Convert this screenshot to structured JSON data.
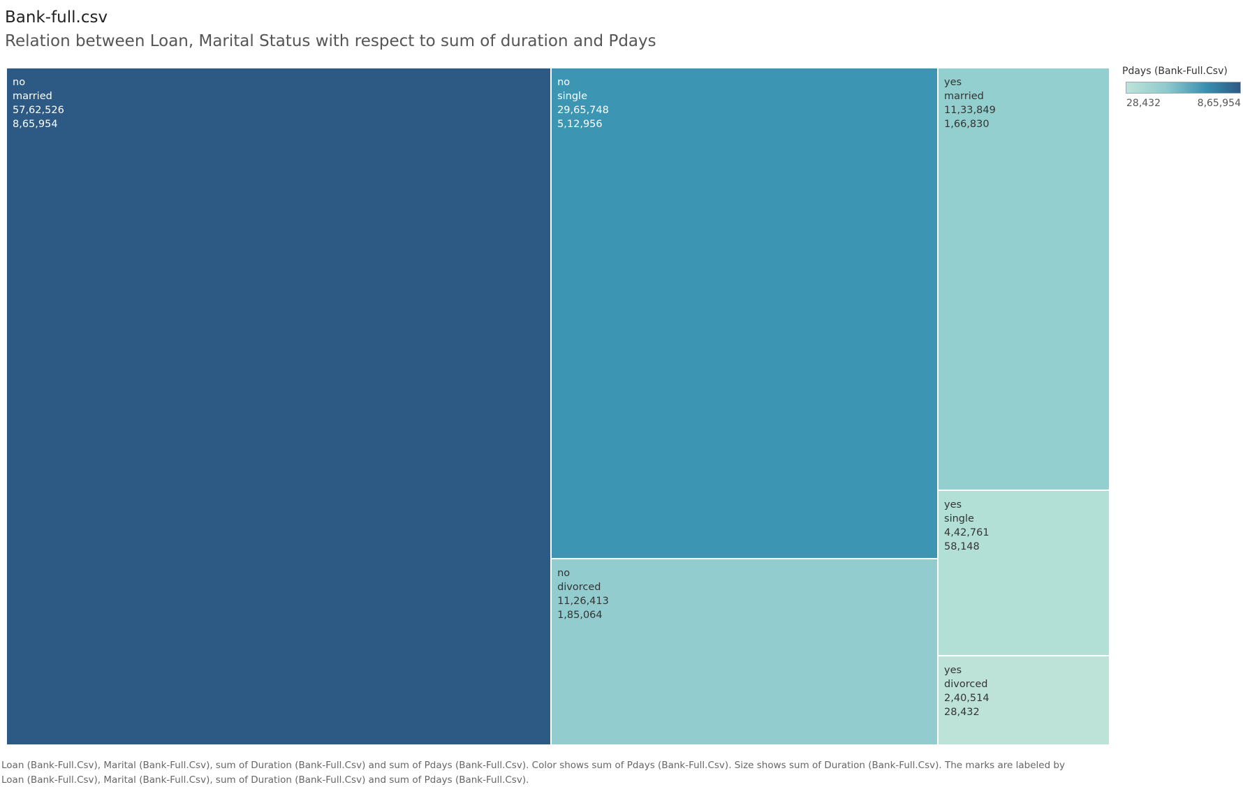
{
  "title": "Bank-full.csv",
  "subtitle": "Relation between Loan, Marital Status with respect to sum of duration and Pdays",
  "legend": {
    "title": "Pdays (Bank-Full.Csv)",
    "min_label": "28,432",
    "max_label": "8,65,954",
    "color_low": "#bde3d8",
    "color_high": "#2c5985"
  },
  "caption_line1": "Loan (Bank-Full.Csv), Marital (Bank-Full.Csv), sum of Duration (Bank-Full.Csv) and sum of Pdays (Bank-Full.Csv).  Color shows sum of Pdays (Bank-Full.Csv).  Size shows sum of Duration (Bank-Full.Csv).  The marks are labeled by",
  "caption_line2": "Loan (Bank-Full.Csv), Marital (Bank-Full.Csv), sum of Duration (Bank-Full.Csv) and sum of Pdays (Bank-Full.Csv).",
  "chart_data": {
    "type": "treemap",
    "size_measure": "sum of Duration",
    "color_measure": "sum of Pdays",
    "cells": [
      {
        "loan": "no",
        "marital": "married",
        "duration": 5762526,
        "duration_label": "57,62,526",
        "pdays": 865954,
        "pdays_label": "8,65,954",
        "color": "#2d5a85",
        "text_color": "#ffffff"
      },
      {
        "loan": "no",
        "marital": "single",
        "duration": 2965748,
        "duration_label": "29,65,748",
        "pdays": 512956,
        "pdays_label": "5,12,956",
        "color": "#3c96b3",
        "text_color": "#ffffff"
      },
      {
        "loan": "no",
        "marital": "divorced",
        "duration": 1126413,
        "duration_label": "11,26,413",
        "pdays": 185064,
        "pdays_label": "1,85,064",
        "color": "#92cccf",
        "text_color": "#333333"
      },
      {
        "loan": "yes",
        "marital": "married",
        "duration": 1133849,
        "duration_label": "11,33,849",
        "pdays": 166830,
        "pdays_label": "1,66,830",
        "color": "#94cfd0",
        "text_color": "#333333"
      },
      {
        "loan": "yes",
        "marital": "single",
        "duration": 442761,
        "duration_label": "4,42,761",
        "pdays": 58148,
        "pdays_label": "58,148",
        "color": "#b2e0d7",
        "text_color": "#333333"
      },
      {
        "loan": "yes",
        "marital": "divorced",
        "duration": 240514,
        "duration_label": "2,40,514",
        "pdays": 28432,
        "pdays_label": "28,432",
        "color": "#bde3d8",
        "text_color": "#333333"
      }
    ]
  }
}
